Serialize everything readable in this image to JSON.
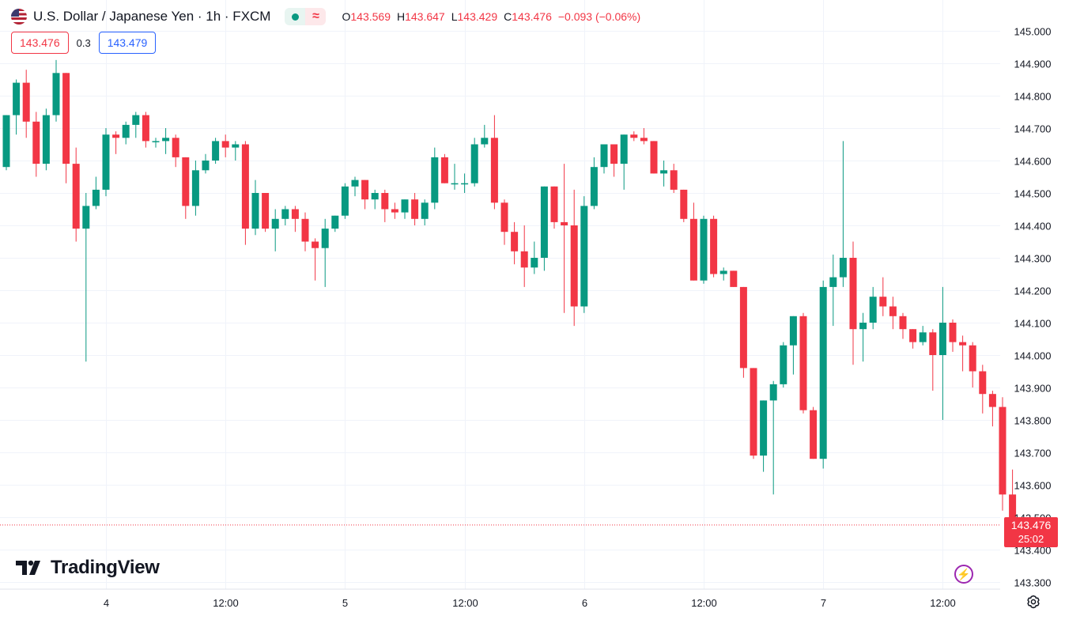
{
  "header": {
    "symbol_title": "U.S. Dollar / Japanese Yen · 1h · FXCM",
    "flag_icon": "us-flag-icon",
    "ohlc": {
      "o_label": "O",
      "o": "143.569",
      "h_label": "H",
      "h": "143.647",
      "l_label": "L",
      "l": "143.429",
      "c_label": "C",
      "c": "143.476",
      "change": "−0.093 (−0.06%)"
    },
    "quotes": {
      "bid": "143.476",
      "spread": "0.3",
      "ask": "143.479"
    }
  },
  "brand": {
    "name": "TradingView"
  },
  "price_tag": {
    "price": "143.476",
    "countdown": "25:02"
  },
  "colors": {
    "up": "#089981",
    "down": "#f23645",
    "grid": "#f0f3fa",
    "text": "#131722",
    "ask": "#2962ff"
  },
  "chart_data": {
    "type": "candlestick",
    "y_ticks": [
      "145.000",
      "144.900",
      "144.800",
      "144.700",
      "144.600",
      "144.500",
      "144.400",
      "144.300",
      "144.200",
      "144.100",
      "144.000",
      "143.900",
      "143.800",
      "143.700",
      "143.600",
      "143.500",
      "143.400",
      "143.300"
    ],
    "ylim": [
      143.28,
      145.04
    ],
    "x_ticks": [
      {
        "label": "4",
        "index": 10
      },
      {
        "label": "12:00",
        "index": 22
      },
      {
        "label": "5",
        "index": 34
      },
      {
        "label": "12:00",
        "index": 46
      },
      {
        "label": "6",
        "index": 58
      },
      {
        "label": "12:00",
        "index": 70
      },
      {
        "label": "7",
        "index": 82
      },
      {
        "label": "12:00",
        "index": 94
      }
    ],
    "last_price": 143.476,
    "candles": [
      [
        144.58,
        144.74,
        144.57,
        144.74
      ],
      [
        144.74,
        144.85,
        144.68,
        144.84
      ],
      [
        144.84,
        144.88,
        144.67,
        144.72
      ],
      [
        144.72,
        144.75,
        144.55,
        144.59
      ],
      [
        144.59,
        144.76,
        144.57,
        144.74
      ],
      [
        144.74,
        144.91,
        144.72,
        144.87
      ],
      [
        144.87,
        144.87,
        144.53,
        144.59
      ],
      [
        144.59,
        144.64,
        144.35,
        144.39
      ],
      [
        144.39,
        144.5,
        143.98,
        144.46
      ],
      [
        144.46,
        144.55,
        144.45,
        144.51
      ],
      [
        144.51,
        144.7,
        144.49,
        144.68
      ],
      [
        144.68,
        144.69,
        144.62,
        144.67
      ],
      [
        144.67,
        144.72,
        144.65,
        144.71
      ],
      [
        144.71,
        144.75,
        144.67,
        144.74
      ],
      [
        144.74,
        144.75,
        144.64,
        144.66
      ],
      [
        144.66,
        144.67,
        144.64,
        144.66
      ],
      [
        144.66,
        144.7,
        144.62,
        144.67
      ],
      [
        144.67,
        144.68,
        144.58,
        144.61
      ],
      [
        144.61,
        144.61,
        144.42,
        144.46
      ],
      [
        144.46,
        144.6,
        144.43,
        144.57
      ],
      [
        144.57,
        144.62,
        144.56,
        144.6
      ],
      [
        144.6,
        144.67,
        144.59,
        144.66
      ],
      [
        144.66,
        144.68,
        144.61,
        144.64
      ],
      [
        144.64,
        144.66,
        144.6,
        144.65
      ],
      [
        144.65,
        144.66,
        144.34,
        144.39
      ],
      [
        144.39,
        144.54,
        144.37,
        144.5
      ],
      [
        144.5,
        144.5,
        144.38,
        144.39
      ],
      [
        144.39,
        144.45,
        144.32,
        144.42
      ],
      [
        144.42,
        144.46,
        144.4,
        144.45
      ],
      [
        144.45,
        144.46,
        144.38,
        144.42
      ],
      [
        144.42,
        144.44,
        144.32,
        144.35
      ],
      [
        144.35,
        144.36,
        144.23,
        144.33
      ],
      [
        144.33,
        144.42,
        144.21,
        144.39
      ],
      [
        144.39,
        144.43,
        144.38,
        144.43
      ],
      [
        144.43,
        144.53,
        144.42,
        144.52
      ],
      [
        144.52,
        144.55,
        144.49,
        144.54
      ],
      [
        144.54,
        144.54,
        144.45,
        144.48
      ],
      [
        144.48,
        144.51,
        144.45,
        144.5
      ],
      [
        144.5,
        144.51,
        144.41,
        144.45
      ],
      [
        144.45,
        144.47,
        144.42,
        144.44
      ],
      [
        144.44,
        144.48,
        144.42,
        144.48
      ],
      [
        144.48,
        144.5,
        144.4,
        144.42
      ],
      [
        144.42,
        144.48,
        144.4,
        144.47
      ],
      [
        144.47,
        144.64,
        144.45,
        144.61
      ],
      [
        144.61,
        144.62,
        144.53,
        144.53
      ],
      [
        144.53,
        144.59,
        144.51,
        144.53
      ],
      [
        144.53,
        144.56,
        144.5,
        144.53
      ],
      [
        144.53,
        144.67,
        144.52,
        144.65
      ],
      [
        144.65,
        144.71,
        144.64,
        144.67
      ],
      [
        144.67,
        144.74,
        144.45,
        144.47
      ],
      [
        144.47,
        144.48,
        144.34,
        144.38
      ],
      [
        144.38,
        144.41,
        144.28,
        144.32
      ],
      [
        144.32,
        144.4,
        144.21,
        144.27
      ],
      [
        144.27,
        144.35,
        144.25,
        144.3
      ],
      [
        144.3,
        144.52,
        144.26,
        144.52
      ],
      [
        144.52,
        144.52,
        144.39,
        144.41
      ],
      [
        144.41,
        144.59,
        144.13,
        144.4
      ],
      [
        144.4,
        144.51,
        144.09,
        144.15
      ],
      [
        144.15,
        144.49,
        144.13,
        144.46
      ],
      [
        144.46,
        144.61,
        144.45,
        144.58
      ],
      [
        144.58,
        144.65,
        144.56,
        144.65
      ],
      [
        144.65,
        144.65,
        144.55,
        144.59
      ],
      [
        144.59,
        144.68,
        144.51,
        144.68
      ],
      [
        144.68,
        144.69,
        144.66,
        144.67
      ],
      [
        144.67,
        144.7,
        144.65,
        144.66
      ],
      [
        144.66,
        144.66,
        144.56,
        144.56
      ],
      [
        144.56,
        144.6,
        144.52,
        144.57
      ],
      [
        144.57,
        144.59,
        144.5,
        144.51
      ],
      [
        144.51,
        144.51,
        144.41,
        144.42
      ],
      [
        144.42,
        144.47,
        144.23,
        144.23
      ],
      [
        144.23,
        144.43,
        144.22,
        144.42
      ],
      [
        144.42,
        144.43,
        144.24,
        144.25
      ],
      [
        144.25,
        144.27,
        144.23,
        144.26
      ],
      [
        144.26,
        144.25,
        144.21,
        144.21
      ],
      [
        144.21,
        144.21,
        143.93,
        143.96
      ],
      [
        143.96,
        143.95,
        143.68,
        143.69
      ],
      [
        143.69,
        143.86,
        143.64,
        143.86
      ],
      [
        143.86,
        143.92,
        143.57,
        143.91
      ],
      [
        143.91,
        144.04,
        143.9,
        144.03
      ],
      [
        144.03,
        144.12,
        143.94,
        144.12
      ],
      [
        144.12,
        144.13,
        143.82,
        143.83
      ],
      [
        143.83,
        143.84,
        143.69,
        143.68
      ],
      [
        143.68,
        144.23,
        143.65,
        144.21
      ],
      [
        144.21,
        144.31,
        144.09,
        144.24
      ],
      [
        144.24,
        144.66,
        144.21,
        144.3
      ],
      [
        144.3,
        144.35,
        143.97,
        144.08
      ],
      [
        144.08,
        144.13,
        143.98,
        144.1
      ],
      [
        144.1,
        144.21,
        144.08,
        144.18
      ],
      [
        144.18,
        144.24,
        144.12,
        144.15
      ],
      [
        144.15,
        144.18,
        144.08,
        144.12
      ],
      [
        144.12,
        144.13,
        144.05,
        144.08
      ],
      [
        144.08,
        144.08,
        144.02,
        144.04
      ],
      [
        144.04,
        144.09,
        144.03,
        144.07
      ],
      [
        144.07,
        144.08,
        143.89,
        144.0
      ],
      [
        144.0,
        144.21,
        143.8,
        144.1
      ],
      [
        144.1,
        144.11,
        144.01,
        144.04
      ],
      [
        144.04,
        144.06,
        143.95,
        144.03
      ],
      [
        144.03,
        144.04,
        143.9,
        143.95
      ],
      [
        143.95,
        143.97,
        143.82,
        143.88
      ],
      [
        143.88,
        143.89,
        143.78,
        143.84
      ],
      [
        143.84,
        143.87,
        143.52,
        143.57
      ],
      [
        143.57,
        143.647,
        143.429,
        143.476
      ]
    ]
  }
}
